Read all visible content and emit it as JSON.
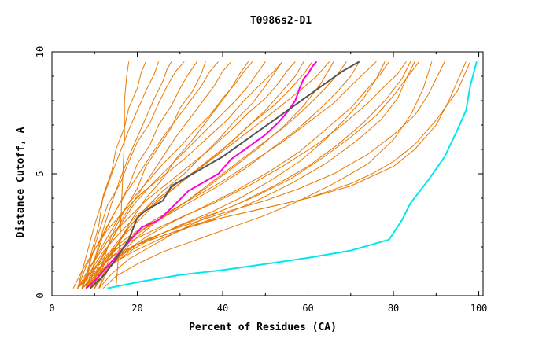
{
  "chart_data": {
    "type": "line",
    "title": "T0986s2-D1",
    "xlabel": "Percent of Residues (CA)",
    "ylabel": "Distance Cutoff, A",
    "xlim": [
      0,
      101
    ],
    "ylim": [
      0,
      10
    ],
    "xticks": [
      "0",
      "20",
      "40",
      "60",
      "80",
      "100"
    ],
    "yticks": [
      "0",
      "5",
      "10"
    ],
    "grid": false,
    "colors": {
      "background_series": "#e87800",
      "cyan": "#00e8ee",
      "magenta": "#ff00d8",
      "gray": "#555555"
    },
    "highlight_series": [
      {
        "name": "cyan",
        "x": [
          13,
          20,
          30,
          40,
          50,
          60,
          70,
          75,
          79,
          82,
          84,
          88,
          92,
          95,
          97,
          98,
          99.5
        ],
        "y": [
          0.3,
          0.55,
          0.85,
          1.05,
          1.3,
          1.55,
          1.85,
          2.1,
          2.3,
          3.1,
          3.8,
          4.7,
          5.7,
          6.8,
          7.6,
          8.6,
          9.6
        ]
      },
      {
        "name": "magenta",
        "x": [
          8,
          10,
          13,
          15,
          18,
          21,
          25,
          28,
          32,
          36,
          39,
          42,
          46,
          50,
          53,
          55,
          57,
          58,
          59,
          60,
          61,
          62
        ],
        "y": [
          0.3,
          0.6,
          1.2,
          1.6,
          2.2,
          2.8,
          3.1,
          3.6,
          4.3,
          4.7,
          5.0,
          5.6,
          6.1,
          6.6,
          7.1,
          7.5,
          8.0,
          8.5,
          8.9,
          9.1,
          9.4,
          9.6
        ]
      },
      {
        "name": "gray",
        "x": [
          9,
          12,
          15,
          18,
          20,
          22,
          26,
          28,
          32,
          36,
          40,
          44,
          48,
          52,
          56,
          60,
          64,
          68,
          72
        ],
        "y": [
          0.3,
          0.8,
          1.5,
          2.3,
          3.2,
          3.5,
          3.9,
          4.5,
          4.9,
          5.3,
          5.7,
          6.2,
          6.7,
          7.2,
          7.7,
          8.2,
          8.7,
          9.2,
          9.6
        ]
      }
    ],
    "background_series": [
      {
        "x": [
          7,
          10,
          12,
          14,
          16,
          18,
          20,
          25,
          30,
          35,
          40,
          45,
          50,
          55,
          60,
          65,
          70,
          75,
          80,
          85,
          90,
          95,
          98
        ],
        "y": [
          0.3,
          0.7,
          1.1,
          1.4,
          1.7,
          1.9,
          2.1,
          2.4,
          2.7,
          3.0,
          3.2,
          3.4,
          3.6,
          3.8,
          4.0,
          4.3,
          4.6,
          5.0,
          5.5,
          6.2,
          7.2,
          8.4,
          9.6
        ]
      },
      {
        "x": [
          6,
          9,
          12,
          15,
          20,
          25,
          30,
          40,
          50,
          60,
          70,
          80,
          85,
          90,
          93,
          95,
          97
        ],
        "y": [
          0.3,
          0.8,
          1.3,
          1.7,
          2.1,
          2.4,
          2.7,
          3.2,
          3.6,
          4.0,
          4.5,
          5.3,
          6.0,
          7.0,
          8.0,
          8.8,
          9.6
        ]
      },
      {
        "x": [
          8,
          11,
          14,
          18,
          22,
          28,
          35,
          42,
          50,
          58,
          66,
          74,
          80,
          85,
          88,
          90,
          92
        ],
        "y": [
          0.3,
          0.9,
          1.4,
          1.9,
          2.3,
          2.7,
          3.1,
          3.5,
          3.9,
          4.4,
          5.0,
          5.8,
          6.6,
          7.4,
          8.2,
          8.9,
          9.6
        ]
      },
      {
        "x": [
          9,
          12,
          16,
          20,
          25,
          32,
          40,
          48,
          56,
          63,
          70,
          76,
          80,
          83,
          86
        ],
        "y": [
          0.3,
          1.0,
          1.6,
          2.1,
          2.5,
          3.0,
          3.5,
          4.1,
          4.8,
          5.6,
          6.5,
          7.4,
          8.2,
          8.9,
          9.6
        ]
      },
      {
        "x": [
          7,
          10,
          14,
          18,
          24,
          30,
          38,
          46,
          54,
          62,
          68,
          74,
          78,
          81,
          83
        ],
        "y": [
          0.3,
          0.9,
          1.6,
          2.2,
          2.7,
          3.2,
          3.8,
          4.5,
          5.3,
          6.2,
          7.0,
          7.9,
          8.6,
          9.1,
          9.6
        ]
      },
      {
        "x": [
          10,
          13,
          17,
          22,
          28,
          35,
          43,
          51,
          58,
          64,
          70,
          74,
          77,
          79
        ],
        "y": [
          0.3,
          1.1,
          1.8,
          2.4,
          3.0,
          3.6,
          4.3,
          5.1,
          5.9,
          6.8,
          7.7,
          8.5,
          9.1,
          9.6
        ]
      },
      {
        "x": [
          6,
          9,
          13,
          17,
          22,
          27,
          33,
          40,
          47,
          54,
          60,
          66,
          70,
          73,
          76
        ],
        "y": [
          0.3,
          1.0,
          1.7,
          2.3,
          2.9,
          3.4,
          4.0,
          4.7,
          5.5,
          6.3,
          7.1,
          7.9,
          8.6,
          9.1,
          9.6
        ]
      },
      {
        "x": [
          8,
          11,
          15,
          20,
          26,
          32,
          39,
          46,
          52,
          58,
          63,
          67,
          70,
          72
        ],
        "y": [
          0.3,
          1.1,
          1.9,
          2.6,
          3.2,
          3.8,
          4.5,
          5.3,
          6.1,
          6.9,
          7.7,
          8.4,
          9.0,
          9.6
        ]
      },
      {
        "x": [
          11,
          13,
          16,
          20,
          25,
          31,
          37,
          43,
          49,
          55,
          60,
          64,
          67,
          69
        ],
        "y": [
          0.3,
          1.0,
          1.7,
          2.4,
          3.1,
          3.8,
          4.6,
          5.4,
          6.2,
          7.0,
          7.8,
          8.5,
          9.1,
          9.6
        ]
      },
      {
        "x": [
          7,
          9,
          12,
          16,
          20,
          25,
          30,
          36,
          42,
          48,
          53,
          58,
          62,
          65
        ],
        "y": [
          0.3,
          1.0,
          1.8,
          2.6,
          3.3,
          4.0,
          4.7,
          5.4,
          6.2,
          7.0,
          7.7,
          8.4,
          9.0,
          9.6
        ]
      },
      {
        "x": [
          9,
          11,
          14,
          18,
          22,
          27,
          32,
          37,
          42,
          47,
          52,
          56,
          59,
          61
        ],
        "y": [
          0.3,
          1.1,
          1.9,
          2.8,
          3.5,
          4.2,
          4.9,
          5.6,
          6.3,
          7.1,
          7.8,
          8.5,
          9.1,
          9.6
        ]
      },
      {
        "x": [
          6,
          8,
          11,
          14,
          18,
          22,
          27,
          32,
          37,
          42,
          46,
          50,
          53,
          55,
          57
        ],
        "y": [
          0.3,
          0.9,
          1.7,
          2.5,
          3.2,
          3.9,
          4.6,
          5.3,
          6.0,
          6.8,
          7.5,
          8.1,
          8.7,
          9.2,
          9.6
        ]
      },
      {
        "x": [
          10,
          12,
          15,
          18,
          22,
          26,
          31,
          35,
          39,
          43,
          47,
          50,
          52,
          54
        ],
        "y": [
          0.3,
          1.2,
          2.0,
          2.8,
          3.6,
          4.3,
          5.0,
          5.7,
          6.4,
          7.2,
          7.9,
          8.6,
          9.1,
          9.6
        ]
      },
      {
        "x": [
          8,
          10,
          13,
          16,
          19,
          23,
          27,
          31,
          35,
          39,
          43,
          46,
          48,
          50
        ],
        "y": [
          0.3,
          1.1,
          2.0,
          2.9,
          3.7,
          4.5,
          5.2,
          5.9,
          6.6,
          7.3,
          8.0,
          8.6,
          9.1,
          9.6
        ]
      },
      {
        "x": [
          7,
          9,
          12,
          15,
          18,
          22,
          26,
          30,
          33,
          37,
          40,
          43,
          45,
          47
        ],
        "y": [
          0.3,
          1.2,
          2.1,
          3.0,
          3.8,
          4.6,
          5.4,
          6.1,
          6.7,
          7.4,
          8.1,
          8.7,
          9.2,
          9.6
        ]
      },
      {
        "x": [
          11,
          13,
          16,
          19,
          22,
          26,
          29,
          33,
          36,
          39,
          42,
          44,
          46
        ],
        "y": [
          0.3,
          1.3,
          2.3,
          3.2,
          4.0,
          4.8,
          5.6,
          6.4,
          7.1,
          7.8,
          8.5,
          9.1,
          9.6
        ]
      },
      {
        "x": [
          9,
          11,
          14,
          17,
          20,
          23,
          26,
          29,
          32,
          35,
          38,
          40,
          42
        ],
        "y": [
          0.3,
          1.3,
          2.3,
          3.3,
          4.1,
          4.9,
          5.7,
          6.5,
          7.2,
          7.9,
          8.6,
          9.2,
          9.6
        ]
      },
      {
        "x": [
          6,
          8,
          11,
          14,
          17,
          20,
          23,
          26,
          29,
          32,
          35,
          37,
          39
        ],
        "y": [
          0.3,
          1.2,
          2.2,
          3.2,
          4.1,
          4.9,
          5.7,
          6.5,
          7.2,
          7.9,
          8.6,
          9.2,
          9.6
        ]
      },
      {
        "x": [
          10,
          12,
          14,
          17,
          20,
          22,
          25,
          28,
          30,
          33,
          35,
          36
        ],
        "y": [
          0.3,
          1.4,
          2.5,
          3.5,
          4.4,
          5.3,
          6.1,
          6.9,
          7.7,
          8.4,
          9.1,
          9.6
        ]
      },
      {
        "x": [
          8,
          10,
          12,
          15,
          18,
          20,
          23,
          25,
          28,
          30,
          32,
          34
        ],
        "y": [
          0.3,
          1.4,
          2.5,
          3.5,
          4.5,
          5.4,
          6.2,
          7.0,
          7.8,
          8.5,
          9.1,
          9.6
        ]
      },
      {
        "x": [
          7,
          9,
          11,
          13,
          16,
          18,
          20,
          23,
          25,
          27,
          29,
          31
        ],
        "y": [
          0.3,
          1.4,
          2.6,
          3.7,
          4.6,
          5.5,
          6.3,
          7.1,
          7.9,
          8.6,
          9.2,
          9.6
        ]
      },
      {
        "x": [
          9,
          10,
          12,
          14,
          16,
          18,
          20,
          22,
          24,
          26,
          27,
          28
        ],
        "y": [
          0.3,
          1.5,
          2.7,
          3.8,
          4.8,
          5.7,
          6.5,
          7.3,
          8.1,
          8.8,
          9.3,
          9.6
        ]
      },
      {
        "x": [
          6,
          8,
          10,
          12,
          14,
          16,
          18,
          20,
          22,
          24,
          25
        ],
        "y": [
          0.3,
          1.6,
          2.9,
          4.0,
          5.0,
          5.9,
          6.8,
          7.6,
          8.4,
          9.1,
          9.6
        ]
      },
      {
        "x": [
          8,
          9,
          11,
          12,
          14,
          15,
          17,
          18,
          20,
          21,
          22
        ],
        "y": [
          0.3,
          1.6,
          2.9,
          4.1,
          5.1,
          6.0,
          6.9,
          7.7,
          8.5,
          9.2,
          9.6
        ]
      },
      {
        "x": [
          15,
          16,
          16.5,
          17,
          17,
          17.5,
          18
        ],
        "y": [
          0.3,
          2.5,
          4.5,
          6.5,
          8.0,
          9.0,
          9.6
        ]
      },
      {
        "x": [
          10,
          12,
          15,
          19,
          24,
          30,
          37,
          44,
          51,
          58,
          64,
          69,
          73,
          76,
          78
        ],
        "y": [
          0.3,
          0.9,
          1.4,
          1.9,
          2.4,
          2.9,
          3.4,
          4.0,
          4.7,
          5.5,
          6.4,
          7.3,
          8.1,
          8.9,
          9.6
        ]
      },
      {
        "x": [
          12,
          15,
          20,
          26,
          34,
          42,
          50,
          58,
          66,
          74,
          80,
          84,
          87,
          89
        ],
        "y": [
          0.3,
          0.8,
          1.3,
          1.8,
          2.3,
          2.8,
          3.3,
          3.9,
          4.6,
          5.4,
          6.4,
          7.4,
          8.5,
          9.6
        ]
      },
      {
        "x": [
          5,
          7,
          10,
          13,
          17,
          21,
          26,
          31,
          36,
          41,
          45,
          49,
          52,
          54
        ],
        "y": [
          0.3,
          1.0,
          1.9,
          2.7,
          3.5,
          4.2,
          4.9,
          5.6,
          6.4,
          7.2,
          8.0,
          8.7,
          9.2,
          9.6
        ]
      },
      {
        "x": [
          11,
          14,
          18,
          23,
          29,
          36,
          44,
          52,
          60,
          67,
          73,
          78,
          82,
          84
        ],
        "y": [
          0.3,
          0.9,
          1.5,
          2.0,
          2.6,
          3.2,
          3.8,
          4.5,
          5.3,
          6.2,
          7.1,
          8.0,
          8.9,
          9.6
        ]
      },
      {
        "x": [
          7,
          10,
          14,
          19,
          25,
          32,
          40,
          48,
          56,
          64,
          71,
          77,
          81,
          83,
          85
        ],
        "y": [
          0.3,
          0.8,
          1.3,
          1.8,
          2.3,
          2.8,
          3.3,
          3.9,
          4.6,
          5.4,
          6.3,
          7.2,
          8.1,
          8.9,
          9.6
        ]
      },
      {
        "x": [
          9,
          11,
          14,
          17,
          21,
          25,
          30,
          35,
          40,
          45,
          50,
          54,
          57,
          59
        ],
        "y": [
          0.3,
          1.0,
          1.8,
          2.5,
          3.2,
          3.9,
          4.6,
          5.3,
          6.0,
          6.8,
          7.6,
          8.4,
          9.0,
          9.6
        ]
      },
      {
        "x": [
          6,
          9,
          13,
          18,
          24,
          30,
          36,
          42,
          48,
          54,
          59,
          63,
          66
        ],
        "y": [
          0.3,
          0.9,
          1.6,
          2.3,
          3.0,
          3.7,
          4.4,
          5.2,
          6.0,
          6.9,
          7.8,
          8.7,
          9.6
        ]
      }
    ]
  }
}
